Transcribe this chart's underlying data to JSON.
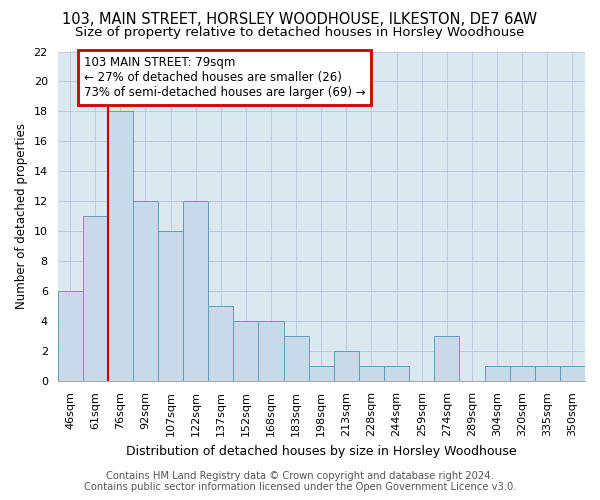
{
  "title1": "103, MAIN STREET, HORSLEY WOODHOUSE, ILKESTON, DE7 6AW",
  "title2": "Size of property relative to detached houses in Horsley Woodhouse",
  "xlabel": "Distribution of detached houses by size in Horsley Woodhouse",
  "ylabel": "Number of detached properties",
  "footer1": "Contains HM Land Registry data © Crown copyright and database right 2024.",
  "footer2": "Contains public sector information licensed under the Open Government Licence v3.0.",
  "categories": [
    "46sqm",
    "61sqm",
    "76sqm",
    "92sqm",
    "107sqm",
    "122sqm",
    "137sqm",
    "152sqm",
    "168sqm",
    "183sqm",
    "198sqm",
    "213sqm",
    "228sqm",
    "244sqm",
    "259sqm",
    "274sqm",
    "289sqm",
    "304sqm",
    "320sqm",
    "335sqm",
    "350sqm"
  ],
  "values": [
    6,
    11,
    18,
    12,
    10,
    12,
    5,
    4,
    4,
    3,
    1,
    2,
    1,
    1,
    0,
    3,
    0,
    1,
    1,
    1,
    1
  ],
  "bar_color": "#c8d9ea",
  "bar_edge_color": "#6699bb",
  "highlight_index": 2,
  "highlight_line_color": "#cc0000",
  "annotation_line1": "103 MAIN STREET: 79sqm",
  "annotation_line2": "← 27% of detached houses are smaller (26)",
  "annotation_line3": "73% of semi-detached houses are larger (69) →",
  "annotation_box_color": "#cc0000",
  "ylim": [
    0,
    22
  ],
  "yticks": [
    0,
    2,
    4,
    6,
    8,
    10,
    12,
    14,
    16,
    18,
    20,
    22
  ],
  "grid_color": "#bbccdd",
  "bg_color": "#dce8f0",
  "title1_fontsize": 10.5,
  "title2_fontsize": 9.5,
  "xlabel_fontsize": 9,
  "ylabel_fontsize": 8.5,
  "tick_fontsize": 8,
  "footer_fontsize": 7.2,
  "annotation_fontsize": 8.5
}
